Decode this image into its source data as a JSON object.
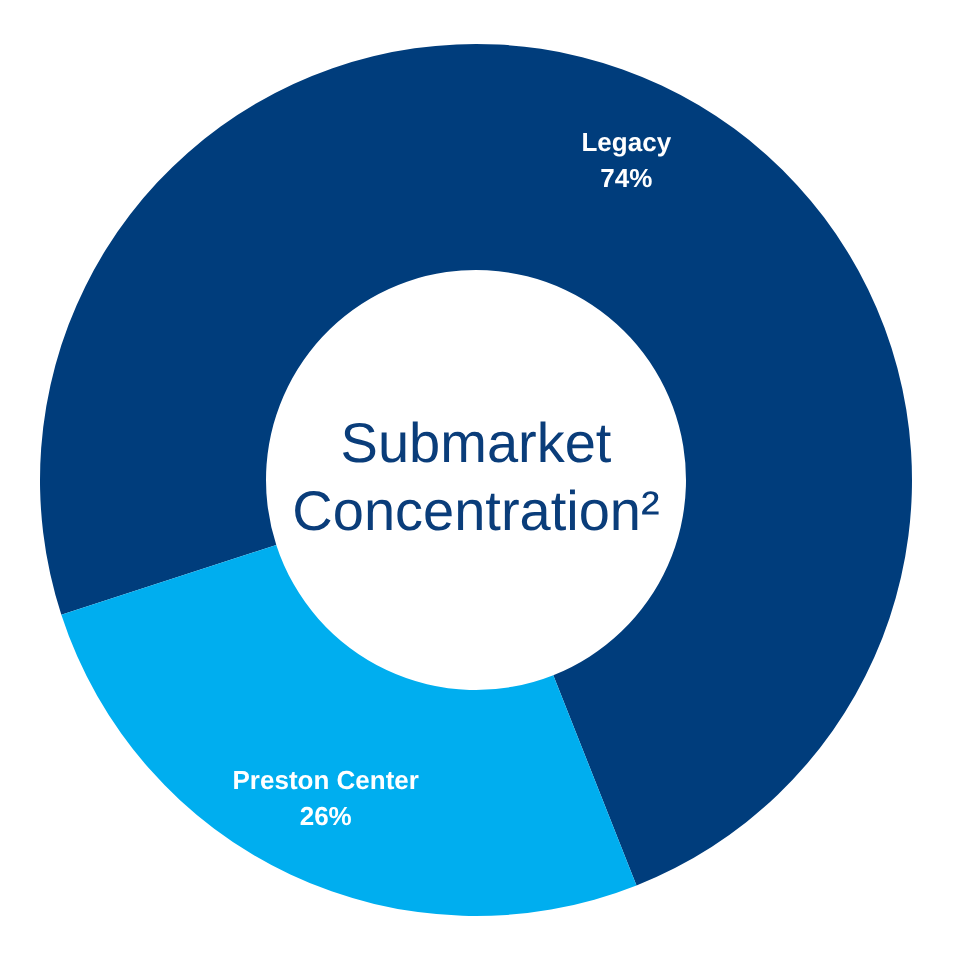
{
  "chart_data": {
    "type": "donut",
    "title": "Submarket Concentration²",
    "categories": [
      "Legacy",
      "Preston Center"
    ],
    "values": [
      74,
      26
    ],
    "colors": [
      "#003d7c",
      "#00aeef"
    ],
    "value_labels": [
      "74%",
      "26%"
    ],
    "legend": false
  }
}
